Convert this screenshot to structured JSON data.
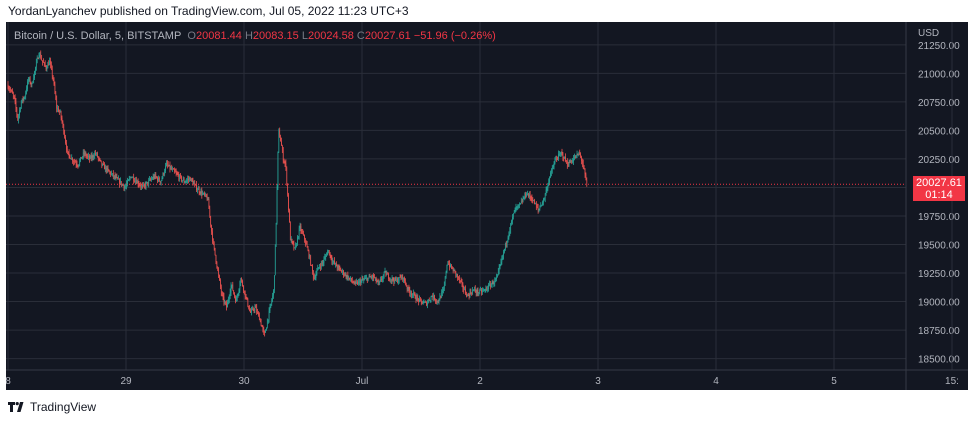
{
  "attribution": "YordanLyanchev published on TradingView.com, Jul 05, 2022 11:23 UTC+3",
  "brand_text": "TradingView",
  "legend": {
    "symbol": "Bitcoin / U.S. Dollar, 5, BITSTAMP",
    "o_label": "O",
    "o_value": "20081.44",
    "h_label": "H",
    "h_value": "20083.15",
    "l_label": "L",
    "l_value": "20024.58",
    "c_label": "C",
    "c_value": "20027.61",
    "change": "−51.96 (−0.26%)"
  },
  "price_tag": {
    "price": "20027.61",
    "countdown": "01:14"
  },
  "colors": {
    "background": "#131722",
    "grid": "#2a2e39",
    "axis_text": "#b2b5be",
    "up": "#26a69a",
    "down": "#ef5350",
    "last_price": "#f23645"
  },
  "chart_data": {
    "type": "candlestick",
    "interval": "5",
    "y_unit": "USD",
    "ylim": [
      18400,
      21450
    ],
    "y_ticks": [
      "21250.00",
      "21000.00",
      "20750.00",
      "20500.00",
      "20250.00",
      "20000.00",
      "19750.00",
      "19500.00",
      "19250.00",
      "19000.00",
      "18750.00",
      "18500.00"
    ],
    "x_ticks": [
      "8",
      "29",
      "30",
      "Jul",
      "2",
      "3",
      "4",
      "5",
      "15:"
    ],
    "grid": true,
    "last_price": 20027.61,
    "price_path": [
      [
        0,
        20900
      ],
      [
        0.03,
        20850
      ],
      [
        0.06,
        20780
      ],
      [
        0.09,
        20600
      ],
      [
        0.12,
        20750
      ],
      [
        0.15,
        20800
      ],
      [
        0.18,
        20950
      ],
      [
        0.21,
        20900
      ],
      [
        0.24,
        21050
      ],
      [
        0.27,
        21180
      ],
      [
        0.3,
        21100
      ],
      [
        0.33,
        21050
      ],
      [
        0.36,
        21100
      ],
      [
        0.39,
        20950
      ],
      [
        0.42,
        20700
      ],
      [
        0.45,
        20650
      ],
      [
        0.48,
        20500
      ],
      [
        0.51,
        20300
      ],
      [
        0.55,
        20250
      ],
      [
        0.6,
        20200
      ],
      [
        0.65,
        20300
      ],
      [
        0.7,
        20250
      ],
      [
        0.75,
        20300
      ],
      [
        0.8,
        20200
      ],
      [
        0.85,
        20150
      ],
      [
        0.9,
        20100
      ],
      [
        0.95,
        20050
      ],
      [
        1.0,
        20000
      ],
      [
        1.05,
        20100
      ],
      [
        1.1,
        20050
      ],
      [
        1.15,
        20000
      ],
      [
        1.2,
        20050
      ],
      [
        1.25,
        20100
      ],
      [
        1.3,
        20050
      ],
      [
        1.35,
        20200
      ],
      [
        1.4,
        20150
      ],
      [
        1.45,
        20100
      ],
      [
        1.5,
        20050
      ],
      [
        1.55,
        20080
      ],
      [
        1.6,
        20000
      ],
      [
        1.65,
        19950
      ],
      [
        1.7,
        19900
      ],
      [
        1.74,
        19550
      ],
      [
        1.78,
        19300
      ],
      [
        1.82,
        19050
      ],
      [
        1.86,
        18950
      ],
      [
        1.9,
        19150
      ],
      [
        1.94,
        19000
      ],
      [
        1.98,
        19200
      ],
      [
        2.02,
        19050
      ],
      [
        2.06,
        18900
      ],
      [
        2.1,
        18950
      ],
      [
        2.14,
        18850
      ],
      [
        2.18,
        18700
      ],
      [
        2.2,
        18800
      ],
      [
        2.22,
        18900
      ],
      [
        2.24,
        19000
      ],
      [
        2.26,
        19100
      ],
      [
        2.28,
        19700
      ],
      [
        2.3,
        20500
      ],
      [
        2.32,
        20400
      ],
      [
        2.34,
        20250
      ],
      [
        2.36,
        20200
      ],
      [
        2.38,
        19900
      ],
      [
        2.4,
        19550
      ],
      [
        2.44,
        19450
      ],
      [
        2.48,
        19650
      ],
      [
        2.52,
        19550
      ],
      [
        2.56,
        19400
      ],
      [
        2.6,
        19200
      ],
      [
        2.64,
        19300
      ],
      [
        2.68,
        19350
      ],
      [
        2.72,
        19450
      ],
      [
        2.76,
        19350
      ],
      [
        2.8,
        19300
      ],
      [
        2.85,
        19250
      ],
      [
        2.9,
        19200
      ],
      [
        2.95,
        19150
      ],
      [
        3.0,
        19180
      ],
      [
        3.05,
        19200
      ],
      [
        3.1,
        19220
      ],
      [
        3.15,
        19150
      ],
      [
        3.2,
        19250
      ],
      [
        3.25,
        19200
      ],
      [
        3.3,
        19180
      ],
      [
        3.35,
        19220
      ],
      [
        3.4,
        19100
      ],
      [
        3.45,
        19050
      ],
      [
        3.5,
        19000
      ],
      [
        3.55,
        18980
      ],
      [
        3.6,
        19050
      ],
      [
        3.65,
        19000
      ],
      [
        3.7,
        19100
      ],
      [
        3.73,
        19350
      ],
      [
        3.76,
        19300
      ],
      [
        3.8,
        19250
      ],
      [
        3.85,
        19150
      ],
      [
        3.9,
        19050
      ],
      [
        3.95,
        19100
      ],
      [
        4.0,
        19080
      ],
      [
        4.05,
        19100
      ],
      [
        4.1,
        19150
      ],
      [
        4.15,
        19200
      ],
      [
        4.2,
        19400
      ],
      [
        4.25,
        19600
      ],
      [
        4.3,
        19800
      ],
      [
        4.35,
        19850
      ],
      [
        4.4,
        19950
      ],
      [
        4.45,
        19900
      ],
      [
        4.5,
        19800
      ],
      [
        4.55,
        19900
      ],
      [
        4.6,
        20100
      ],
      [
        4.65,
        20250
      ],
      [
        4.7,
        20300
      ],
      [
        4.75,
        20200
      ],
      [
        4.8,
        20250
      ],
      [
        4.85,
        20300
      ],
      [
        4.88,
        20200
      ],
      [
        4.91,
        20027.61
      ]
    ]
  }
}
